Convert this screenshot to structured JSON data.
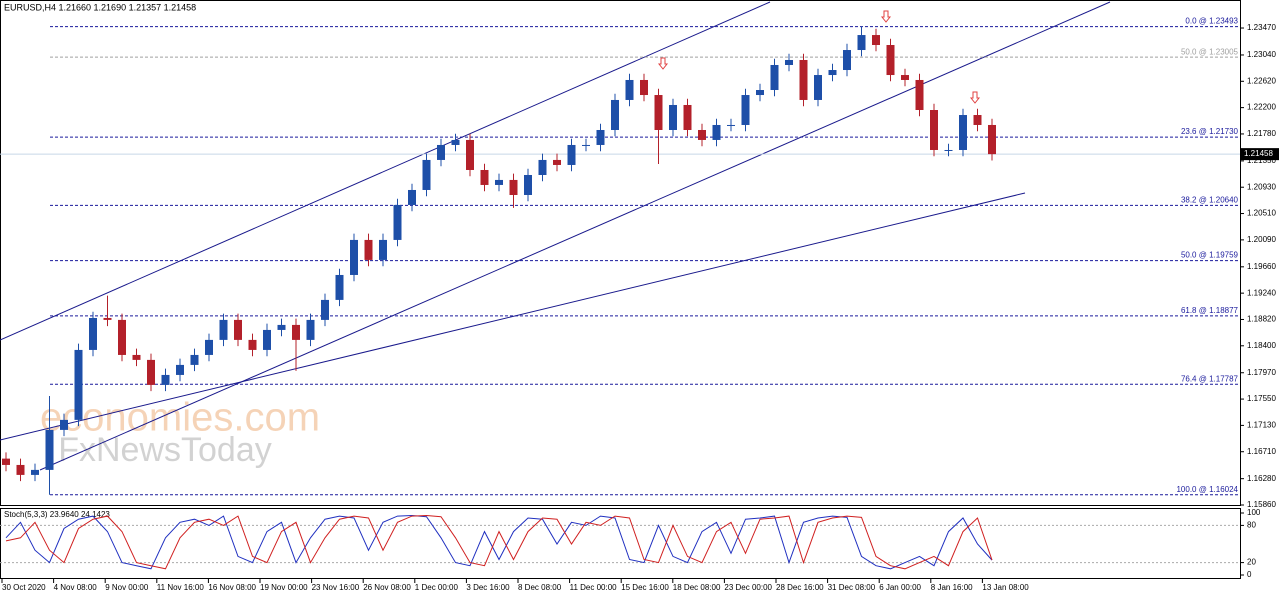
{
  "header": "EURUSD,H4  1.21660 1.21690 1.21357 1.21458",
  "watermark": [
    "economies.com",
    "FxNewsToday"
  ],
  "time_labels": [
    "30 Oct 2020",
    "4 Nov 08:00",
    "9 Nov 00:00",
    "11 Nov 16:00",
    "16 Nov 08:00",
    "19 Nov 00:00",
    "23 Nov 16:00",
    "26 Nov 08:00",
    "1 Dec 00:00",
    "3 Dec 16:00",
    "8 Dec 08:00",
    "11 Dec 00:00",
    "15 Dec 16:00",
    "18 Dec 08:00",
    "23 Dec 00:00",
    "28 Dec 16:00",
    "31 Dec 08:00",
    "6 Jan 00:00",
    "8 Jan 16:00",
    "13 Jan 08:00"
  ],
  "chart_data": [
    {
      "type": "candlestick",
      "up_color": "#1e4fa8",
      "down_color": "#b3202a",
      "ylim": [
        1.1586,
        1.23917
      ],
      "yticks": [
        {
          "value": 1.2347,
          "label": "1.23470"
        },
        {
          "value": 1.2304,
          "label": "1.23040"
        },
        {
          "value": 1.2262,
          "label": "1.22620"
        },
        {
          "value": 1.222,
          "label": "1.22200"
        },
        {
          "value": 1.2178,
          "label": "1.21780"
        },
        {
          "value": 1.2135,
          "label": "1.21350"
        },
        {
          "value": 1.2093,
          "label": "1.20930"
        },
        {
          "value": 1.2051,
          "label": "1.20510"
        },
        {
          "value": 1.2009,
          "label": "1.20090"
        },
        {
          "value": 1.1966,
          "label": "1.19660"
        },
        {
          "value": 1.1924,
          "label": "1.19240"
        },
        {
          "value": 1.1882,
          "label": "1.18820"
        },
        {
          "value": 1.184,
          "label": "1.18400"
        },
        {
          "value": 1.1797,
          "label": "1.17970"
        },
        {
          "value": 1.1755,
          "label": "1.17550"
        },
        {
          "value": 1.1713,
          "label": "1.17130"
        },
        {
          "value": 1.1671,
          "label": "1.16710"
        },
        {
          "value": 1.1628,
          "label": "1.16280"
        },
        {
          "value": 1.1586,
          "label": "1.15860"
        }
      ],
      "current_price": {
        "value": 1.21458,
        "label": "1.21458"
      },
      "levels": [
        {
          "label": "0.0 @ 1.23493",
          "value": 1.23493,
          "color": "#1a1a9c"
        },
        {
          "label": "50.0 @ 1.23005",
          "value": 1.23005,
          "color": "#a0a0a0"
        },
        {
          "label": "23.6 @ 1.21730",
          "value": 1.2173,
          "color": "#1a1a9c"
        },
        {
          "label": "38.2 @ 1.20640",
          "value": 1.2064,
          "color": "#1a1a9c"
        },
        {
          "label": "50.0 @ 1.19759",
          "value": 1.19759,
          "color": "#1a1a9c"
        },
        {
          "label": "61.8 @ 1.18877",
          "value": 1.18877,
          "color": "#1a1a9c"
        },
        {
          "label": "76.4 @ 1.17787",
          "value": 1.17787,
          "color": "#1a1a9c"
        },
        {
          "label": "100.0 @ 1.16024",
          "value": 1.16024,
          "color": "#1a1a9c"
        }
      ],
      "open": [
        1.166,
        1.16499,
        1.1634,
        1.1642,
        1.17058,
        1.17218,
        1.18334,
        1.18844,
        1.18813,
        1.18254,
        1.18175,
        1.17776,
        1.17935,
        1.18095,
        1.18254,
        1.18494,
        1.18813,
        1.18494,
        1.18334,
        1.18653,
        1.18733,
        1.18494,
        1.18813,
        1.19132,
        1.1953,
        1.20089,
        1.1977,
        1.20089,
        1.20647,
        1.20886,
        1.21365,
        1.21604,
        1.21684,
        1.21205,
        1.20966,
        1.21046,
        1.20806,
        1.21125,
        1.21365,
        1.21285,
        1.21604,
        1.21604,
        1.21843,
        1.22322,
        1.22641,
        1.22401,
        1.21843,
        1.22242,
        1.21843,
        1.21684,
        1.21923,
        1.21923,
        1.22401,
        1.22481,
        1.2288,
        1.2296,
        1.22322,
        1.2272,
        1.228,
        1.23119,
        1.23358,
        1.23199,
        1.2272,
        1.22641,
        1.22162,
        1.21524,
        1.21524,
        1.22082,
        1.21923
      ],
      "high": [
        1.167,
        1.16599,
        1.1652,
        1.176,
        1.17318,
        1.18434,
        1.18944,
        1.192,
        1.18913,
        1.18354,
        1.18275,
        1.18035,
        1.18195,
        1.18354,
        1.18594,
        1.18913,
        1.18913,
        1.18594,
        1.18753,
        1.18833,
        1.18833,
        1.18913,
        1.19232,
        1.1963,
        1.20189,
        1.20189,
        1.20189,
        1.20747,
        1.20986,
        1.21465,
        1.21704,
        1.21784,
        1.21784,
        1.21305,
        1.21146,
        1.21146,
        1.21225,
        1.21465,
        1.21465,
        1.21704,
        1.21704,
        1.21943,
        1.22422,
        1.22741,
        1.22741,
        1.22501,
        1.22342,
        1.22342,
        1.21943,
        1.22023,
        1.22023,
        1.22501,
        1.22581,
        1.2298,
        1.2306,
        1.2306,
        1.2282,
        1.229,
        1.23219,
        1.23493,
        1.23458,
        1.23299,
        1.2282,
        1.22741,
        1.22262,
        1.21624,
        1.22182,
        1.22182,
        1.22023
      ],
      "low": [
        1.16399,
        1.1624,
        1.1624,
        1.16024,
        1.16958,
        1.17118,
        1.18234,
        1.18713,
        1.18154,
        1.18075,
        1.17676,
        1.17676,
        1.17835,
        1.17995,
        1.18154,
        1.18394,
        1.18394,
        1.18234,
        1.18234,
        1.18553,
        1.18,
        1.18394,
        1.18713,
        1.19032,
        1.1943,
        1.1967,
        1.1967,
        1.19989,
        1.20547,
        1.20786,
        1.21265,
        1.21504,
        1.21105,
        1.20866,
        1.20866,
        1.206,
        1.20706,
        1.21025,
        1.21185,
        1.21185,
        1.21504,
        1.21504,
        1.21743,
        1.22222,
        1.22301,
        1.213,
        1.21743,
        1.21743,
        1.21584,
        1.21584,
        1.21823,
        1.21823,
        1.22301,
        1.22381,
        1.2278,
        1.22222,
        1.22222,
        1.2262,
        1.227,
        1.23019,
        1.23099,
        1.2262,
        1.22541,
        1.22062,
        1.21424,
        1.21424,
        1.21424,
        1.21823,
        1.21357
      ],
      "close": [
        1.16499,
        1.1634,
        1.1642,
        1.17058,
        1.17218,
        1.18334,
        1.18844,
        1.18813,
        1.18254,
        1.18175,
        1.17776,
        1.17935,
        1.18095,
        1.18254,
        1.18494,
        1.18813,
        1.18494,
        1.18334,
        1.18653,
        1.18733,
        1.18494,
        1.18813,
        1.19132,
        1.1953,
        1.20089,
        1.1977,
        1.20089,
        1.20647,
        1.20886,
        1.21365,
        1.21604,
        1.21684,
        1.21205,
        1.20966,
        1.21046,
        1.20806,
        1.21125,
        1.21365,
        1.21285,
        1.21604,
        1.21604,
        1.21843,
        1.22322,
        1.22641,
        1.22401,
        1.21843,
        1.22242,
        1.21843,
        1.21684,
        1.21923,
        1.21923,
        1.22401,
        1.22481,
        1.2288,
        1.2296,
        1.22322,
        1.2272,
        1.228,
        1.23119,
        1.23358,
        1.23199,
        1.2272,
        1.22641,
        1.22162,
        1.21524,
        1.21524,
        1.22082,
        1.21923,
        1.21458
      ]
    },
    {
      "type": "line",
      "title": "Stoch(5,3,3) 23.9640 24.1423",
      "ylim": [
        0,
        100
      ],
      "yticks": [
        100,
        80,
        20,
        0
      ],
      "series": [
        {
          "color": "#2030c0",
          "values": [
            60,
            85,
            40,
            20,
            75,
            90,
            95,
            70,
            20,
            15,
            10,
            60,
            85,
            90,
            80,
            95,
            30,
            20,
            70,
            85,
            20,
            60,
            90,
            95,
            92,
            40,
            85,
            95,
            96,
            94,
            60,
            20,
            15,
            70,
            25,
            70,
            92,
            90,
            50,
            85,
            80,
            95,
            92,
            25,
            20,
            80,
            30,
            20,
            70,
            85,
            35,
            90,
            92,
            95,
            20,
            85,
            92,
            95,
            93,
            30,
            15,
            10,
            20,
            30,
            15,
            70,
            92,
            50,
            23.964
          ]
        },
        {
          "color": "#d02020",
          "values": [
            55,
            60,
            85,
            40,
            20,
            75,
            90,
            95,
            70,
            20,
            15,
            10,
            60,
            85,
            90,
            80,
            95,
            30,
            20,
            70,
            85,
            20,
            60,
            90,
            95,
            92,
            40,
            85,
            95,
            96,
            94,
            60,
            20,
            15,
            70,
            25,
            70,
            92,
            90,
            50,
            85,
            80,
            95,
            92,
            25,
            20,
            80,
            30,
            20,
            70,
            85,
            35,
            90,
            92,
            95,
            20,
            85,
            92,
            95,
            93,
            30,
            15,
            10,
            20,
            30,
            15,
            70,
            92,
            24.1423
          ]
        }
      ]
    }
  ]
}
